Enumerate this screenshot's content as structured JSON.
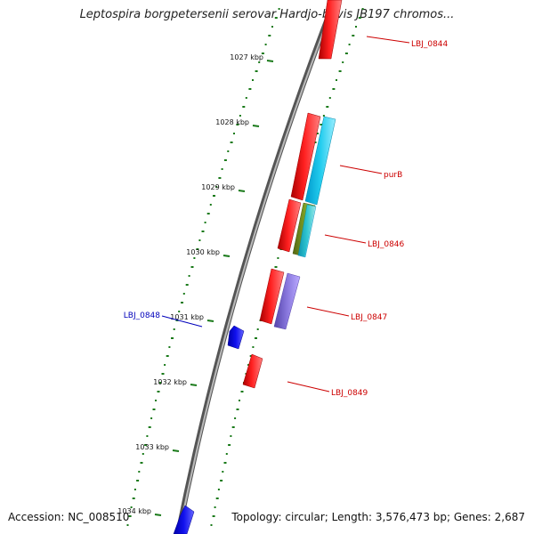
{
  "title": "Leptospira borgpetersenii serovar Hardjo-bovis JB197 chromos...",
  "footer": {
    "accession": "Accession: NC_008510",
    "stats": "Topology: circular; Length: 3,576,473 bp; Genes: 2,687"
  },
  "colors": {
    "backbone": "#8a8a8a",
    "ticks": "#1a7a1a",
    "forward_label": "#cc0000",
    "reverse_label": "#0000bb",
    "gene_red": "#ee1111",
    "gene_cyan": "#22ccee",
    "gene_olive": "#7a9a22",
    "gene_purple": "#8877dd",
    "gene_blue": "#1111ee"
  },
  "ticks": [
    {
      "label": "1027 kbp"
    },
    {
      "label": "1028 kbp"
    },
    {
      "label": "1029 kbp"
    },
    {
      "label": "1030 kbp"
    },
    {
      "label": "1031 kbp"
    },
    {
      "label": "1032 kbp"
    },
    {
      "label": "1033 kbp"
    },
    {
      "label": "1034 kbp"
    }
  ],
  "gene_labels": [
    {
      "text": "LBJ_0844",
      "strand": "forward"
    },
    {
      "text": "purB",
      "strand": "forward"
    },
    {
      "text": "LBJ_0846",
      "strand": "forward"
    },
    {
      "text": "LBJ_0847",
      "strand": "forward"
    },
    {
      "text": "LBJ_0848",
      "strand": "reverse"
    },
    {
      "text": "LBJ_0849",
      "strand": "forward"
    }
  ]
}
